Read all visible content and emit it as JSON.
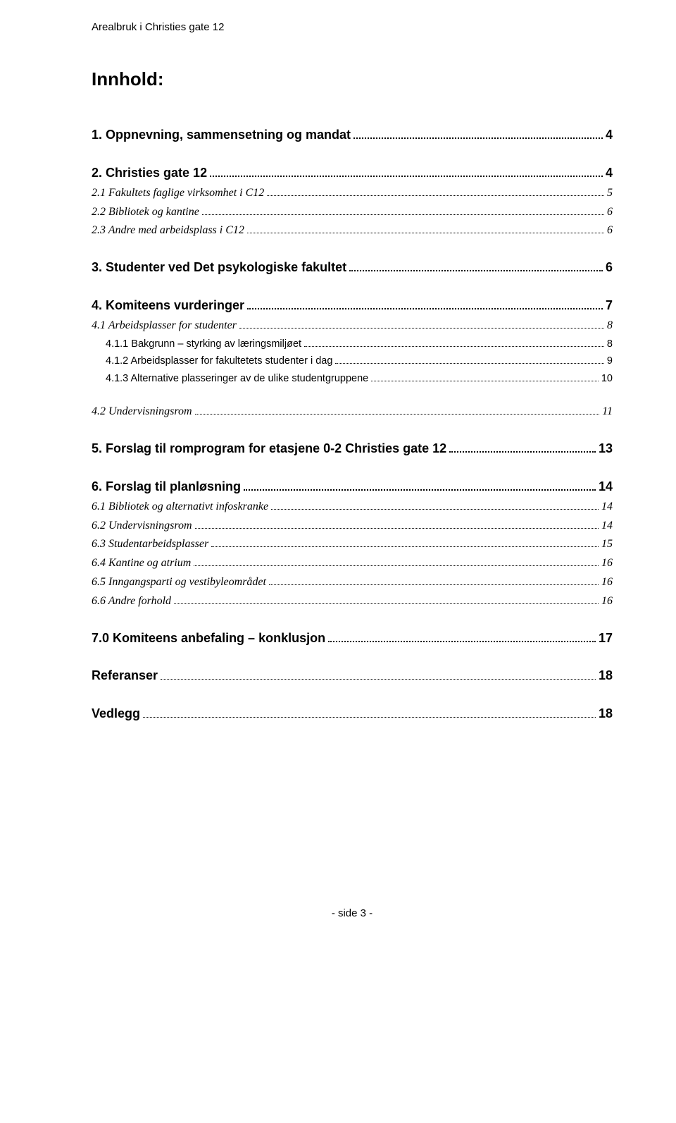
{
  "running_header": "Arealbruk i Christies gate 12",
  "title": "Innhold:",
  "footer": "-   side 3   -",
  "toc": [
    {
      "level": 1,
      "label": "1. Oppnevning, sammensetning og mandat",
      "page": "4"
    },
    {
      "level": 1,
      "label": "2. Christies gate 12",
      "page": "4"
    },
    {
      "level": 2,
      "label": "2.1 Fakultets faglige virksomhet i C12",
      "page": "5"
    },
    {
      "level": 2,
      "label": "2.2 Bibliotek og kantine",
      "page": "6"
    },
    {
      "level": 2,
      "label": "2.3 Andre med arbeidsplass i C12",
      "page": "6"
    },
    {
      "level": 1,
      "label": "3. Studenter ved Det psykologiske fakultet",
      "page": "6"
    },
    {
      "level": 1,
      "label": "4. Komiteens vurderinger",
      "page": "7"
    },
    {
      "level": 2,
      "label": "4.1 Arbeidsplasser for studenter",
      "page": "8"
    },
    {
      "level": 3,
      "label": "4.1.1 Bakgrunn – styrking av læringsmiljøet",
      "page": "8"
    },
    {
      "level": 3,
      "label": "4.1.2 Arbeidsplasser for fakultetets studenter i dag",
      "page": "9"
    },
    {
      "level": 3,
      "label": "4.1.3 Alternative plasseringer av de ulike studentgruppene",
      "page": "10"
    },
    {
      "level": 2,
      "label": "4.2 Undervisningsrom",
      "page": "11",
      "spaced": true
    },
    {
      "level": 1,
      "label": "5. Forslag til romprogram for etasjene 0-2 Christies gate 12",
      "page": "13"
    },
    {
      "level": 1,
      "label": "6. Forslag til planløsning",
      "page": "14"
    },
    {
      "level": 2,
      "label": "6.1 Bibliotek og alternativt infoskranke",
      "page": "14"
    },
    {
      "level": 2,
      "label": "6.2 Undervisningsrom",
      "page": "14"
    },
    {
      "level": 2,
      "label": "6.3 Studentarbeidsplasser",
      "page": "15"
    },
    {
      "level": 2,
      "label": "6.4 Kantine og atrium",
      "page": "16"
    },
    {
      "level": 2,
      "label": "6.5 Inngangsparti og vestibyleområdet",
      "page": "16"
    },
    {
      "level": 2,
      "label": "6.6 Andre forhold",
      "page": "16"
    },
    {
      "level": 1,
      "label": "7.0 Komiteens anbefaling – konklusjon",
      "page": "17"
    },
    {
      "level": 1,
      "label": "Referanser",
      "page": "18",
      "ref": true
    },
    {
      "level": 1,
      "label": "Vedlegg",
      "page": "18",
      "ref": true
    }
  ]
}
